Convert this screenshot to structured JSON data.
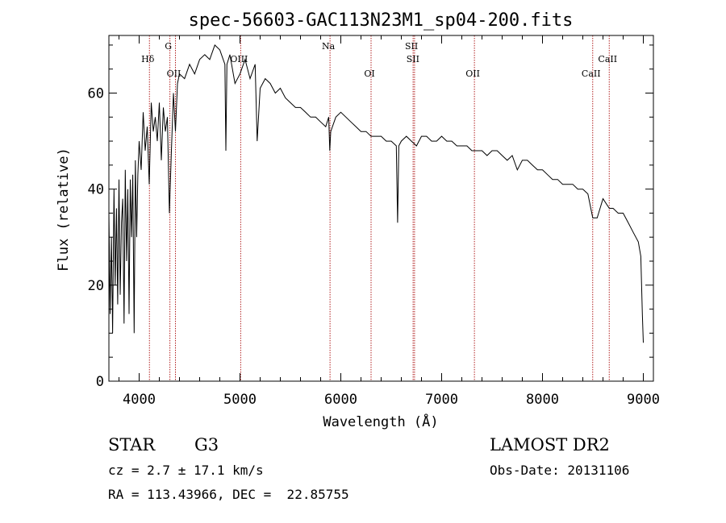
{
  "chart_data": {
    "type": "line",
    "title": "spec-56603-GAC113N23M1_sp04-200.fits",
    "xlabel": "Wavelength (Å)",
    "ylabel": "Flux (relative)",
    "xlim": [
      3700,
      9100
    ],
    "ylim": [
      0,
      72
    ],
    "xticks": [
      4000,
      5000,
      6000,
      7000,
      8000,
      9000
    ],
    "yticks": [
      0,
      20,
      40,
      60
    ],
    "grid": false,
    "colors": {
      "spectrum": "#000000",
      "line_markers": "#b22222",
      "axes": "#000000"
    },
    "series": [
      {
        "x": [
          3700,
          3712,
          3725,
          3737,
          3750,
          3762,
          3775,
          3787,
          3800,
          3812,
          3825,
          3837,
          3850,
          3862,
          3875,
          3887,
          3900,
          3912,
          3925,
          3937,
          3950,
          3962,
          3975,
          3987,
          4000,
          4020,
          4040,
          4060,
          4080,
          4100,
          4120,
          4140,
          4160,
          4180,
          4200,
          4220,
          4240,
          4260,
          4280,
          4300,
          4320,
          4340,
          4360,
          4380,
          4400,
          4450,
          4500,
          4550,
          4600,
          4650,
          4700,
          4750,
          4800,
          4850,
          4860,
          4870,
          4900,
          4950,
          5000,
          5050,
          5100,
          5150,
          5170,
          5200,
          5250,
          5300,
          5350,
          5400,
          5450,
          5500,
          5550,
          5600,
          5650,
          5700,
          5750,
          5800,
          5850,
          5880,
          5890,
          5900,
          5950,
          6000,
          6050,
          6100,
          6150,
          6200,
          6250,
          6300,
          6350,
          6400,
          6450,
          6500,
          6550,
          6563,
          6575,
          6600,
          6650,
          6700,
          6750,
          6800,
          6850,
          6900,
          6950,
          7000,
          7050,
          7100,
          7150,
          7200,
          7250,
          7300,
          7350,
          7400,
          7450,
          7500,
          7550,
          7600,
          7650,
          7700,
          7750,
          7800,
          7850,
          7900,
          7950,
          8000,
          8050,
          8100,
          8150,
          8200,
          8250,
          8300,
          8350,
          8400,
          8450,
          8498,
          8542,
          8600,
          8662,
          8700,
          8750,
          8800,
          8850,
          8900,
          8950,
          8975,
          8990,
          9000
        ],
        "y": [
          35,
          14,
          30,
          10,
          40,
          20,
          36,
          16,
          42,
          18,
          33,
          38,
          12,
          44,
          25,
          40,
          14,
          42,
          30,
          43,
          10,
          46,
          30,
          43,
          50,
          44,
          56,
          48,
          53,
          41,
          58,
          52,
          55,
          50,
          58,
          46,
          57,
          52,
          55,
          35,
          48,
          60,
          52,
          62,
          64,
          63,
          66,
          64,
          67,
          68,
          67,
          70,
          69,
          66,
          48,
          66,
          68,
          62,
          64,
          67,
          63,
          66,
          50,
          61,
          63,
          62,
          60,
          61,
          59,
          58,
          57,
          57,
          56,
          55,
          55,
          54,
          53,
          55,
          48,
          52,
          55,
          56,
          55,
          54,
          53,
          52,
          52,
          51,
          51,
          51,
          50,
          50,
          49,
          33,
          49,
          50,
          51,
          50,
          49,
          51,
          51,
          50,
          50,
          51,
          50,
          50,
          49,
          49,
          49,
          48,
          48,
          48,
          47,
          48,
          48,
          47,
          46,
          47,
          44,
          46,
          46,
          45,
          44,
          44,
          43,
          42,
          42,
          41,
          41,
          41,
          40,
          40,
          39,
          34,
          34,
          38,
          36,
          36,
          35,
          35,
          33,
          31,
          29,
          26,
          14,
          8
        ]
      }
    ],
    "line_markers": [
      {
        "label": "Hδ",
        "x": 4102,
        "row": 2
      },
      {
        "label": "G",
        "x": 4305,
        "row": 1
      },
      {
        "label": "OII",
        "x": 4360,
        "row": 3
      },
      {
        "label": "OIII",
        "x": 5007,
        "row": 2
      },
      {
        "label": "Na",
        "x": 5893,
        "row": 1
      },
      {
        "label": "OI",
        "x": 6300,
        "row": 3
      },
      {
        "label": "SII",
        "x": 6717,
        "row": 1
      },
      {
        "label": "SII",
        "x": 6731,
        "row": 2
      },
      {
        "label": "OII",
        "x": 7325,
        "row": 3
      },
      {
        "label": "CaII",
        "x": 8498,
        "row": 3
      },
      {
        "label": "CaII",
        "x": 8662,
        "row": 2
      }
    ]
  },
  "info": {
    "object_class": "STAR",
    "subclass": "G3",
    "survey": "LAMOST DR2",
    "redshift": "cz = 2.7 ± 17.1 km/s",
    "obs_date": "Obs-Date: 20131106",
    "coords": "RA = 113.43966, DEC =  22.85755"
  }
}
